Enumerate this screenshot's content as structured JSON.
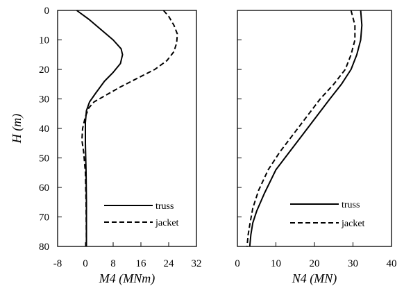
{
  "chart_data": [
    {
      "type": "line",
      "orientation": "depth-profile (x = value, y = depth increasing downward)",
      "xlabel": "M4 (MNm)",
      "ylabel": "H (m)",
      "xlim": [
        -8,
        32
      ],
      "ylim": [
        0,
        80
      ],
      "xticks": [
        "-8",
        "0",
        "8",
        "16",
        "24",
        "32"
      ],
      "yticks": [
        "0",
        "10",
        "20",
        "30",
        "40",
        "50",
        "60",
        "70",
        "80"
      ],
      "grid": false,
      "legend_position": "bottom-right",
      "series": [
        {
          "name": "truss",
          "style": "solid",
          "points": [
            [
              -2.5,
              0
            ],
            [
              1,
              3
            ],
            [
              5,
              7
            ],
            [
              8,
              10
            ],
            [
              10.3,
              13
            ],
            [
              10.7,
              15
            ],
            [
              10.1,
              18
            ],
            [
              8,
              21
            ],
            [
              5.5,
              24
            ],
            [
              3,
              28
            ],
            [
              1.2,
              31
            ],
            [
              0.3,
              34
            ],
            [
              0,
              38
            ],
            [
              0,
              45
            ],
            [
              0.2,
              55
            ],
            [
              0.3,
              65
            ],
            [
              0.3,
              80
            ]
          ]
        },
        {
          "name": "jacket",
          "style": "dashed",
          "points": [
            [
              22.5,
              0
            ],
            [
              24,
              2
            ],
            [
              25.5,
              5
            ],
            [
              26.5,
              8
            ],
            [
              26.3,
              11
            ],
            [
              25.5,
              14
            ],
            [
              23.5,
              17
            ],
            [
              20,
              20
            ],
            [
              15,
              23
            ],
            [
              10,
              26
            ],
            [
              5.5,
              29
            ],
            [
              2.5,
              31
            ],
            [
              1,
              33
            ],
            [
              0,
              36
            ],
            [
              -0.8,
              40
            ],
            [
              -1,
              44
            ],
            [
              -0.5,
              48
            ],
            [
              0,
              55
            ],
            [
              0.2,
              65
            ],
            [
              0.3,
              80
            ]
          ]
        }
      ]
    },
    {
      "type": "line",
      "orientation": "depth-profile (x = value, y = depth increasing downward)",
      "xlabel": "N4 (MN)",
      "ylabel": "",
      "xlim": [
        0,
        40
      ],
      "ylim": [
        0,
        80
      ],
      "xticks": [
        "0",
        "10",
        "20",
        "30",
        "40"
      ],
      "grid": false,
      "legend_position": "bottom-right",
      "series": [
        {
          "name": "truss",
          "style": "solid",
          "points": [
            [
              32,
              0
            ],
            [
              32.3,
              5
            ],
            [
              32,
              10
            ],
            [
              31,
              15
            ],
            [
              29.5,
              20
            ],
            [
              27,
              25
            ],
            [
              24,
              30
            ],
            [
              20.5,
              36
            ],
            [
              17,
              42
            ],
            [
              13.5,
              48
            ],
            [
              10,
              54
            ],
            [
              7,
              62
            ],
            [
              5,
              68
            ],
            [
              4,
              72
            ],
            [
              3.5,
              76
            ],
            [
              3.2,
              80
            ]
          ]
        },
        {
          "name": "jacket",
          "style": "dashed",
          "points": [
            [
              29.5,
              0
            ],
            [
              30.5,
              5
            ],
            [
              30.5,
              10
            ],
            [
              29.5,
              15
            ],
            [
              28,
              20
            ],
            [
              25,
              25
            ],
            [
              21.5,
              30
            ],
            [
              18,
              36
            ],
            [
              14.5,
              42
            ],
            [
              11,
              48
            ],
            [
              8,
              54
            ],
            [
              5.5,
              61
            ],
            [
              4,
              67
            ],
            [
              3.3,
              72
            ],
            [
              2.8,
              76
            ],
            [
              2.5,
              80
            ]
          ]
        }
      ]
    }
  ]
}
